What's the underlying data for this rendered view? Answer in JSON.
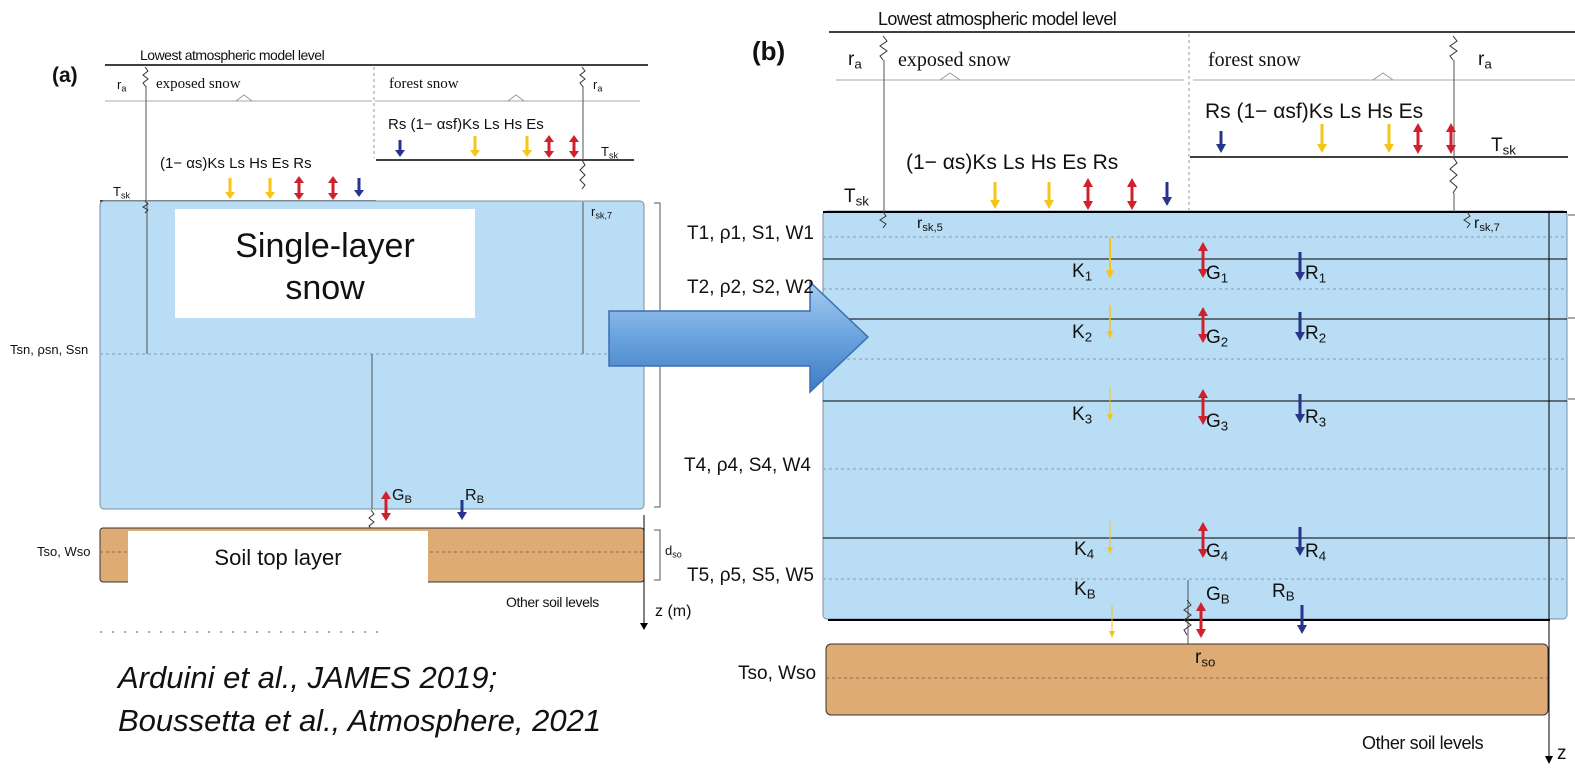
{
  "panel_a": {
    "label": "(a)",
    "lowest_level": "Lowest atmospheric model level",
    "exposed_snow": "exposed snow",
    "forest_snow": "forest snow",
    "ra": [
      "r",
      "a"
    ],
    "tsk": [
      "T",
      "sk"
    ],
    "rsk7": [
      "r",
      "sk,7"
    ],
    "flux_exposed": "(1− αs)Ks Ls Hs Es Rs",
    "flux_forest": "Rs (1− αsf)Ks Ls Hs Es",
    "single_layer": "Single-layer snow",
    "tsn": "Tsn, ρsn, Ssn",
    "gb": [
      "G",
      "B"
    ],
    "rb": [
      "R",
      "B"
    ],
    "tso_wso": "Tso, Wso",
    "dso": [
      "d",
      "so"
    ],
    "soil_top": "Soil top layer",
    "other_soil": "Other soil levels",
    "z_axis": "z (m)"
  },
  "citation": {
    "line1": "Arduini et al., JAMES 2019;",
    "line2": "Boussetta et al., Atmosphere, 2021"
  },
  "panel_b": {
    "label": "(b)",
    "lowest_level": "Lowest atmospheric model level",
    "exposed_snow": "exposed snow",
    "forest_snow": "forest snow",
    "ra": [
      "r",
      "a"
    ],
    "tsk": [
      "T",
      "sk"
    ],
    "rsk5": [
      "r",
      "sk,5"
    ],
    "rsk7": [
      "r",
      "sk,7"
    ],
    "flux_exposed": "(1− αs)Ks Ls Hs Es Rs",
    "flux_forest": "Rs (1− αsf)Ks Ls Hs Es",
    "layers": [
      {
        "T": "T1",
        "rho": "ρ1",
        "S": "S1",
        "W": "W1"
      },
      {
        "T": "T2",
        "rho": "ρ2",
        "S": "S2",
        "W": "W2"
      },
      {
        "T": "T4",
        "rho": "ρ4",
        "S": "S4",
        "W": "W4"
      },
      {
        "T": "T5",
        "rho": "ρ5",
        "S": "S5",
        "W": "W5"
      }
    ],
    "fluxes": [
      {
        "K": [
          "K",
          "1"
        ],
        "G": [
          "G",
          "1"
        ],
        "R": [
          "R",
          "1"
        ]
      },
      {
        "K": [
          "K",
          "2"
        ],
        "G": [
          "G",
          "2"
        ],
        "R": [
          "R",
          "2"
        ]
      },
      {
        "K": [
          "K",
          "3"
        ],
        "G": [
          "G",
          "3"
        ],
        "R": [
          "R",
          "3"
        ]
      },
      {
        "K": [
          "K",
          "4"
        ],
        "G": [
          "G",
          "4"
        ],
        "R": [
          "R",
          "4"
        ]
      },
      {
        "K": [
          "K",
          "B"
        ],
        "G": [
          "G",
          "B"
        ],
        "R": [
          "R",
          "B"
        ]
      }
    ],
    "rso": [
      "r",
      "so"
    ],
    "tso_wso": "Tso, Wso",
    "other_soil": "Other soil levels",
    "z_axis": "z"
  },
  "colors": {
    "snow": "#b8ddf4",
    "snow_border": "#7a8fa3",
    "soil": "#dfab74",
    "solar": "#f5c518",
    "heat": "#d0202c",
    "rain": "#27348b",
    "arrow_fill": "#6aa3de"
  }
}
